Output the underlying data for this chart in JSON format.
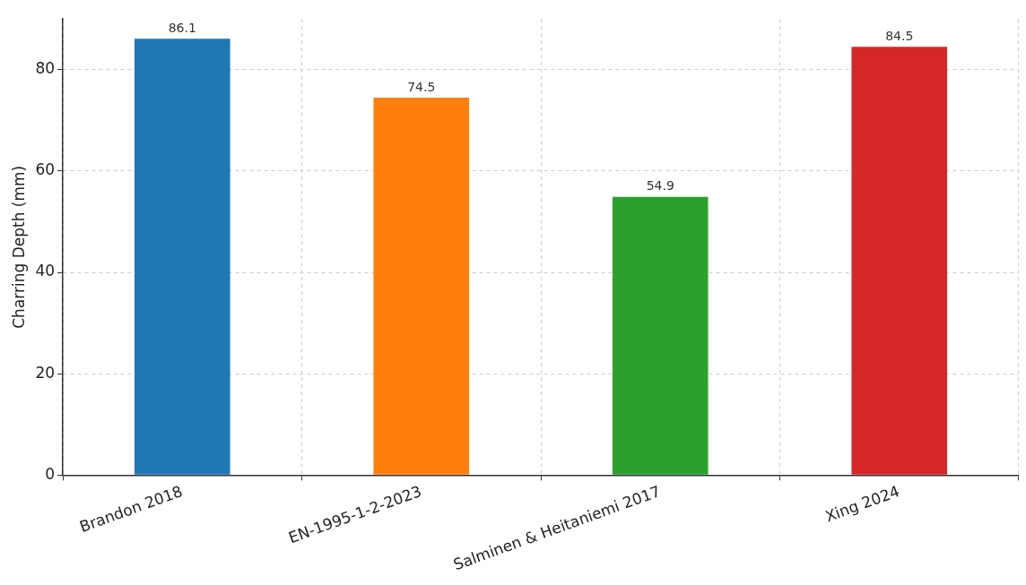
{
  "chart_data": {
    "type": "bar",
    "categories": [
      "Brandon 2018",
      "EN-1995-1-2-2023",
      "Salminen & Heitaniemi 2017",
      "Xing 2024"
    ],
    "values": [
      86.1,
      74.5,
      54.9,
      84.5
    ],
    "colors": [
      "#1f77b4",
      "#ff7f0e",
      "#2ca02c",
      "#d62728"
    ],
    "ylabel": "Charring Depth (mm)",
    "ylim": [
      0,
      90
    ],
    "yticks": [
      0,
      20,
      40,
      60,
      80
    ],
    "grid": true,
    "data_labels": true
  }
}
